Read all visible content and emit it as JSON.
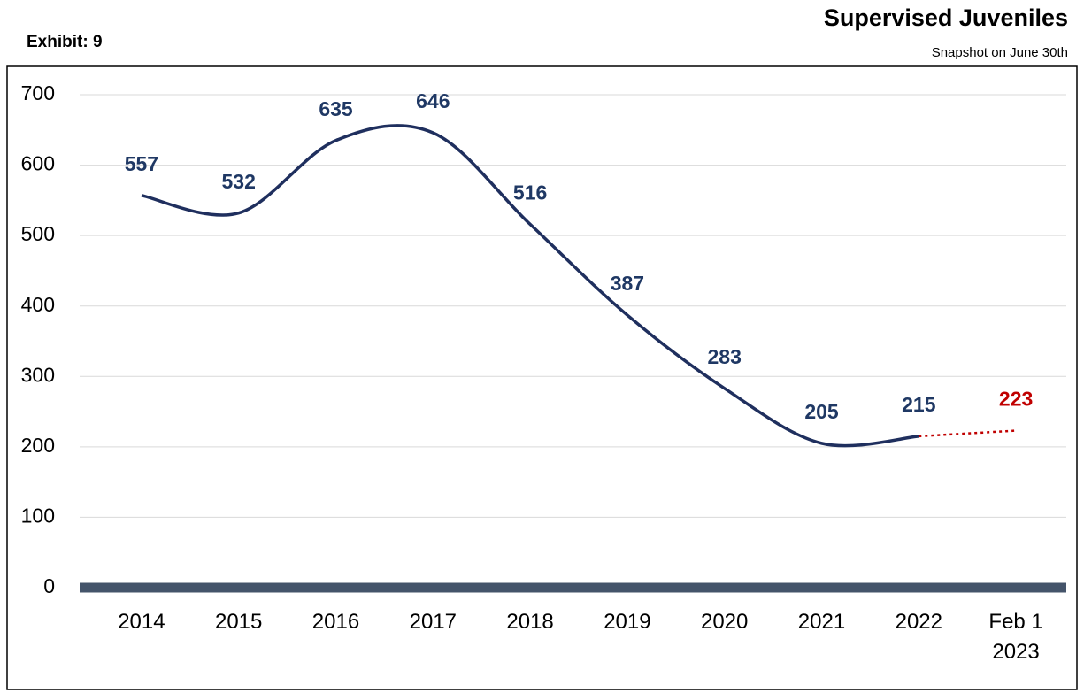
{
  "chart_data": {
    "type": "line",
    "title": "Supervised Juveniles",
    "subtitle": "Snapshot on June 30th",
    "exhibit": "Exhibit: 9",
    "categories": [
      "2014",
      "2015",
      "2016",
      "2017",
      "2018",
      "2019",
      "2020",
      "2021",
      "2022",
      "Feb 1 2023"
    ],
    "values": [
      557,
      532,
      635,
      646,
      516,
      387,
      283,
      205,
      215,
      223
    ],
    "color": "#1f2f5e",
    "label_color": "#1f3864",
    "projection_color": "#c00000",
    "ylim": [
      0,
      700
    ],
    "yticks": [
      0,
      100,
      200,
      300,
      400,
      500,
      600,
      700
    ],
    "grid": true
  }
}
